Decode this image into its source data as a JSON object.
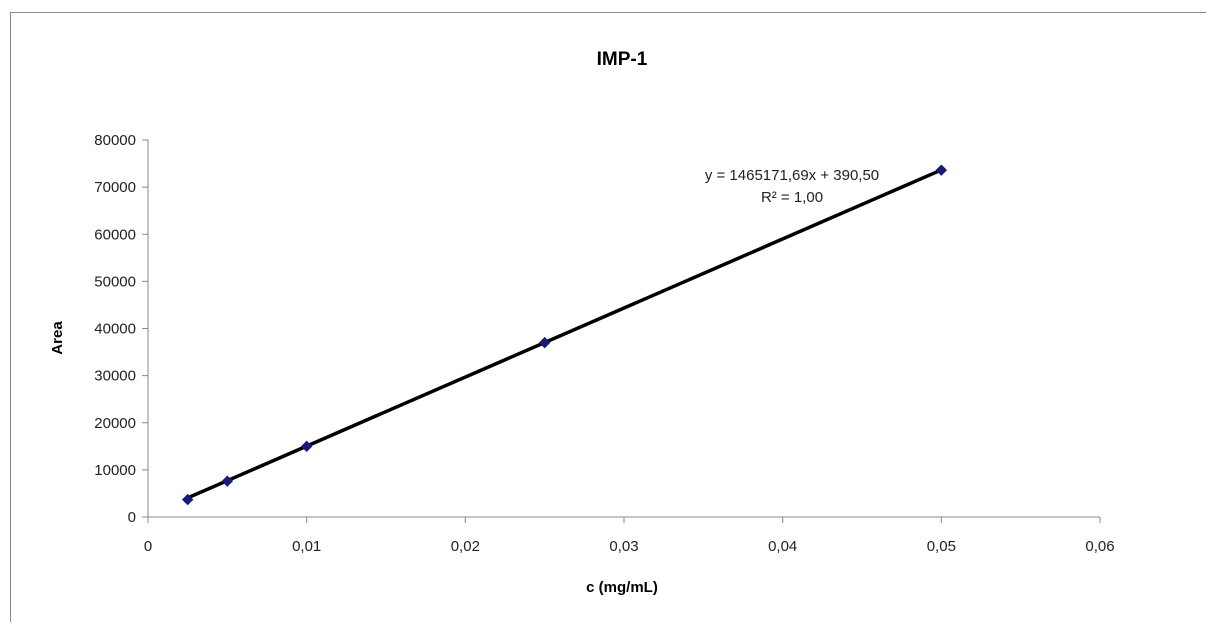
{
  "chart_data": {
    "type": "scatter",
    "title": "IMP-1",
    "xlabel": "c (mg/mL)",
    "ylabel": "Area",
    "xlim": [
      0,
      0.06
    ],
    "ylim": [
      0,
      80000
    ],
    "x_ticks": [
      "0",
      "0,01",
      "0,02",
      "0,03",
      "0,04",
      "0,05",
      "0,06"
    ],
    "x_tick_values": [
      0,
      0.01,
      0.02,
      0.03,
      0.04,
      0.05,
      0.06
    ],
    "y_ticks": [
      "0",
      "10000",
      "20000",
      "30000",
      "40000",
      "50000",
      "60000",
      "70000",
      "80000"
    ],
    "y_tick_values": [
      0,
      10000,
      20000,
      30000,
      40000,
      50000,
      60000,
      70000,
      80000
    ],
    "grid": false,
    "legend": "none",
    "series": [
      {
        "x": [
          0.0025,
          0.005,
          0.01,
          0.025,
          0.05
        ],
        "y": [
          3700,
          7600,
          15000,
          37000,
          73600
        ]
      }
    ],
    "trendline": {
      "type": "linear",
      "slope": 1465171.69,
      "intercept": 390.5,
      "x_range": [
        0.0025,
        0.05
      ],
      "equation": "y = 1465171,69x  + 390,50",
      "r_squared": "R² = 1,00"
    },
    "colors": {
      "marker": "#1a1a7a",
      "trendline": "#000000",
      "axis": "#888888"
    }
  }
}
